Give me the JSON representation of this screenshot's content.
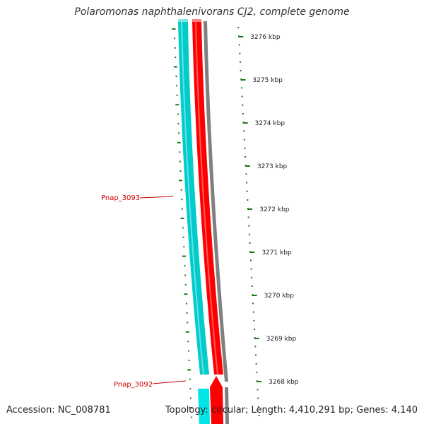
{
  "title": "Polaromonas naphthalenivorans CJ2, complete genome",
  "accession": "Accession: NC_008781",
  "summary": "Topology: circular; Length: 4,410,291 bp; Genes: 4,140",
  "colors": {
    "forward_strand": "#ff0000",
    "reverse_strand": "#00cccc",
    "backbone": "#808080",
    "ticks": "#1a7a1a",
    "gene_label": "#cc0000"
  },
  "tick_labels": [
    {
      "label": "3276 kbp"
    },
    {
      "label": "3275 kbp"
    },
    {
      "label": "3274 kbp"
    },
    {
      "label": "3273 kbp"
    },
    {
      "label": "3272 kbp"
    },
    {
      "label": "3271 kbp"
    },
    {
      "label": "3270 kbp"
    },
    {
      "label": "3269 kbp"
    },
    {
      "label": "3268 kbp"
    }
  ],
  "genes": [
    {
      "label": "Pnap_3093"
    },
    {
      "label": "Pnap_3092"
    }
  ]
}
